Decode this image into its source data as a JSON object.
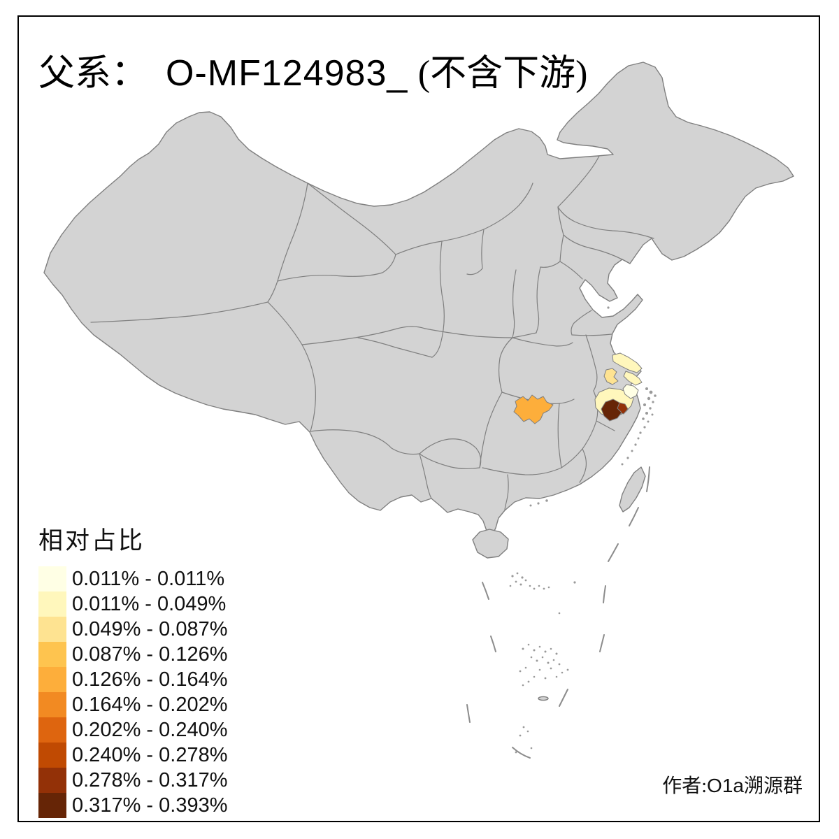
{
  "title": {
    "prefix": "父系：",
    "haplogroup": "O-MF124983_",
    "suffix": "(不含下游)"
  },
  "legend": {
    "title": "相对占比",
    "classes": [
      {
        "range": "0.011% - 0.011%",
        "color": "#FFFFE5"
      },
      {
        "range": "0.011% - 0.049%",
        "color": "#FFF7BC"
      },
      {
        "range": "0.049% - 0.087%",
        "color": "#FEE391"
      },
      {
        "range": "0.087% - 0.126%",
        "color": "#FEC44F"
      },
      {
        "range": "0.126% - 0.164%",
        "color": "#FDAE3B"
      },
      {
        "range": "0.164% - 0.202%",
        "color": "#F28A22"
      },
      {
        "range": "0.202% - 0.240%",
        "color": "#DE650F"
      },
      {
        "range": "0.240% - 0.278%",
        "color": "#C04A02"
      },
      {
        "range": "0.278% - 0.317%",
        "color": "#933107"
      },
      {
        "range": "0.317% - 0.393%",
        "color": "#662506"
      }
    ]
  },
  "attribution": {
    "prefix": "作者:",
    "name": "O1a",
    "suffix": "溯源群"
  },
  "map": {
    "background": "#FFFFFF",
    "land_fill": "#D3D3D3",
    "border_color": "#7F7F7F",
    "frame_color": "#000000",
    "highlighted_regions": [
      {
        "id": "region-1",
        "class_index": 5,
        "range": "0.126% - 0.164%"
      },
      {
        "id": "region-2",
        "class_index": 2,
        "range": "0.011% - 0.049%"
      },
      {
        "id": "region-3",
        "class_index": 3,
        "range": "0.049% - 0.087%"
      },
      {
        "id": "region-4",
        "class_index": 2,
        "range": "0.011% - 0.049%"
      },
      {
        "id": "region-5",
        "class_index": 1,
        "range": "0.011% - 0.011%"
      },
      {
        "id": "region-6",
        "class_index": 2,
        "range": "0.011% - 0.049%"
      },
      {
        "id": "region-7",
        "class_index": 10,
        "range": "0.317% - 0.393%"
      },
      {
        "id": "region-8",
        "class_index": 9,
        "range": "0.278% - 0.317%"
      }
    ]
  }
}
